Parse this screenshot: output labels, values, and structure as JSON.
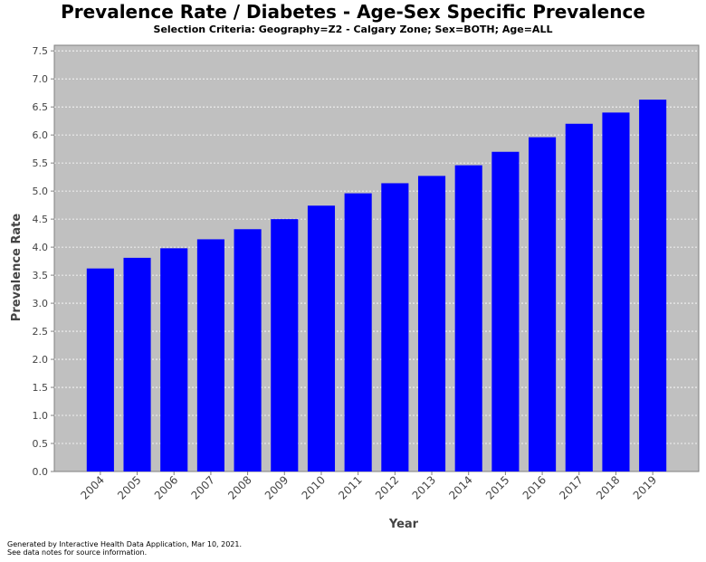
{
  "chart_data": {
    "type": "bar",
    "title": "Prevalence Rate / Diabetes - Age-Sex Specific Prevalence",
    "subtitle": "Selection Criteria: Geography=Z2 - Calgary Zone; Sex=BOTH; Age=ALL",
    "xlabel": "Year",
    "ylabel": "Prevalence Rate",
    "ylim": [
      0,
      7.6
    ],
    "yticks": [
      "0.0",
      "0.5",
      "1.0",
      "1.5",
      "2.0",
      "2.5",
      "3.0",
      "3.5",
      "4.0",
      "4.5",
      "5.0",
      "5.5",
      "6.0",
      "6.5",
      "7.0",
      "7.5"
    ],
    "categories": [
      "2004",
      "2005",
      "2006",
      "2007",
      "2008",
      "2009",
      "2010",
      "2011",
      "2012",
      "2013",
      "2014",
      "2015",
      "2016",
      "2017",
      "2018",
      "2019"
    ],
    "values": [
      3.62,
      3.81,
      3.98,
      4.14,
      4.32,
      4.5,
      4.74,
      4.96,
      5.14,
      5.27,
      5.46,
      5.7,
      5.96,
      6.2,
      6.4,
      6.63
    ],
    "grid": true,
    "colors": {
      "bar": "#0000ff",
      "plot_background": "#c0c0c0",
      "grid": "#ffffff"
    }
  },
  "footer": {
    "line1": "Generated by Interactive Health Data Application, Mar 10, 2021.",
    "line2": "See data notes for source information."
  }
}
